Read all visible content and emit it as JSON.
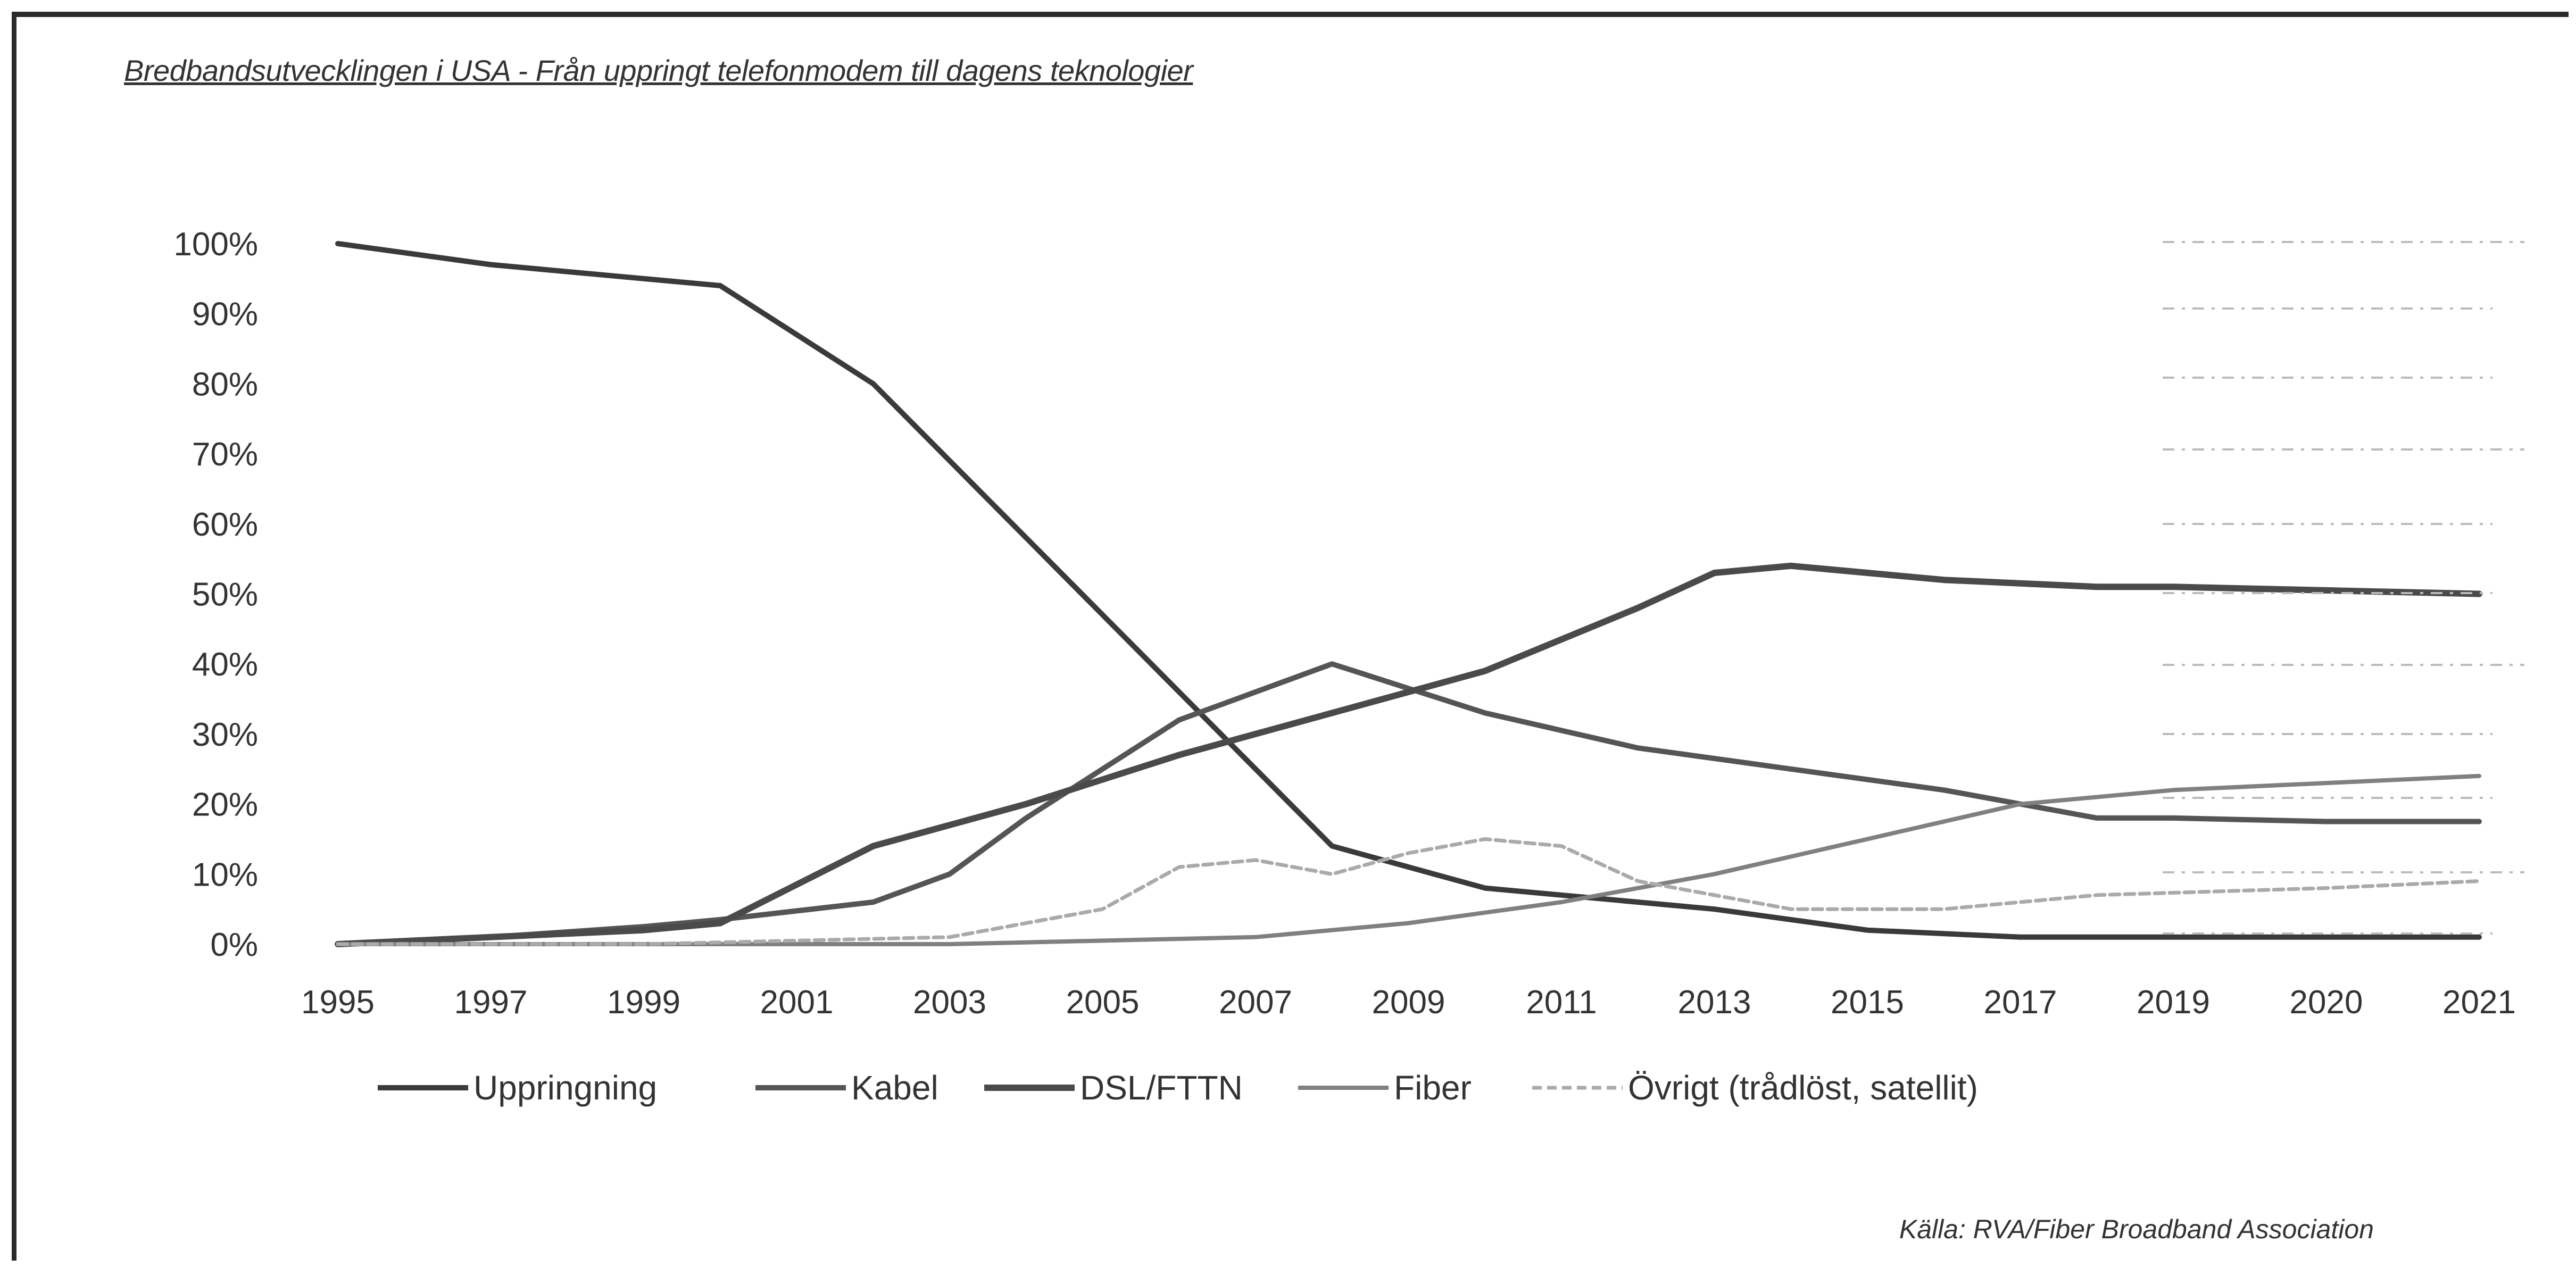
{
  "title": "Bredbandsutvecklingen i USA - Från uppringt telefonmodem till dagens teknologier",
  "source": "Källa: RVA/Fiber Broadband Association",
  "chart_data": {
    "type": "line",
    "title": "Bredbandsutvecklingen i USA - Från uppringt telefonmodem till dagens teknologier",
    "xlabel": "",
    "ylabel": "",
    "x": [
      "1995",
      "1997",
      "1999",
      "2001",
      "2003",
      "2005",
      "2007",
      "2009",
      "2011",
      "2013",
      "2015",
      "2017",
      "2019",
      "2020",
      "2021"
    ],
    "y_ticks": [
      "0%",
      "10%",
      "20%",
      "30%",
      "40%",
      "50%",
      "60%",
      "70%",
      "80%",
      "90%",
      "100%"
    ],
    "ylim": [
      0,
      100
    ],
    "grid": false,
    "legend_position": "bottom",
    "series": [
      {
        "name": "Uppringning",
        "color": "#3a3a3a",
        "points": [
          [
            1995,
            100
          ],
          [
            1997,
            97
          ],
          [
            1999,
            95
          ],
          [
            2000,
            94
          ],
          [
            2002,
            80
          ],
          [
            2004,
            58
          ],
          [
            2006,
            36
          ],
          [
            2008,
            14
          ],
          [
            2010,
            8
          ],
          [
            2011,
            7
          ],
          [
            2013,
            5
          ],
          [
            2015,
            2
          ],
          [
            2017,
            1
          ],
          [
            2019,
            1
          ],
          [
            2020,
            1
          ],
          [
            2021,
            1
          ]
        ]
      },
      {
        "name": "Kabel",
        "color": "#555555",
        "points": [
          [
            1995,
            0
          ],
          [
            1997,
            1
          ],
          [
            1999,
            2.5
          ],
          [
            2000,
            3.5
          ],
          [
            2002,
            6
          ],
          [
            2003,
            10
          ],
          [
            2004,
            18
          ],
          [
            2006,
            32
          ],
          [
            2008,
            40
          ],
          [
            2010,
            33
          ],
          [
            2012,
            28
          ],
          [
            2014,
            25
          ],
          [
            2016,
            22
          ],
          [
            2018,
            18
          ],
          [
            2019,
            18
          ],
          [
            2020,
            17.5
          ],
          [
            2021,
            17.5
          ]
        ]
      },
      {
        "name": "DSL/FTTN",
        "color": "#4a4a4a",
        "points": [
          [
            1995,
            0
          ],
          [
            1997,
            1
          ],
          [
            1999,
            2
          ],
          [
            2000,
            3
          ],
          [
            2002,
            14
          ],
          [
            2004,
            20
          ],
          [
            2006,
            27
          ],
          [
            2008,
            33
          ],
          [
            2010,
            39
          ],
          [
            2012,
            48
          ],
          [
            2013,
            53
          ],
          [
            2014,
            54
          ],
          [
            2016,
            52
          ],
          [
            2018,
            51
          ],
          [
            2019,
            51
          ],
          [
            2020,
            50.5
          ],
          [
            2021,
            50
          ]
        ]
      },
      {
        "name": "Fiber",
        "color": "#808080",
        "points": [
          [
            1995,
            0
          ],
          [
            1999,
            0
          ],
          [
            2003,
            0
          ],
          [
            2007,
            1
          ],
          [
            2009,
            3
          ],
          [
            2011,
            6
          ],
          [
            2013,
            10
          ],
          [
            2015,
            15
          ],
          [
            2017,
            20
          ],
          [
            2019,
            22
          ],
          [
            2020,
            23
          ],
          [
            2021,
            24
          ]
        ]
      },
      {
        "name": "Övrigt (trådlöst, satellit)",
        "color": "#aaaaaa",
        "points": [
          [
            1995,
            0
          ],
          [
            1999,
            0
          ],
          [
            2003,
            1
          ],
          [
            2005,
            5
          ],
          [
            2006,
            11
          ],
          [
            2007,
            12
          ],
          [
            2008,
            10
          ],
          [
            2009,
            13
          ],
          [
            2010,
            15
          ],
          [
            2011,
            14
          ],
          [
            2012,
            9
          ],
          [
            2014,
            5
          ],
          [
            2016,
            5
          ],
          [
            2018,
            7
          ],
          [
            2020,
            8
          ],
          [
            2021,
            9
          ]
        ]
      }
    ]
  }
}
